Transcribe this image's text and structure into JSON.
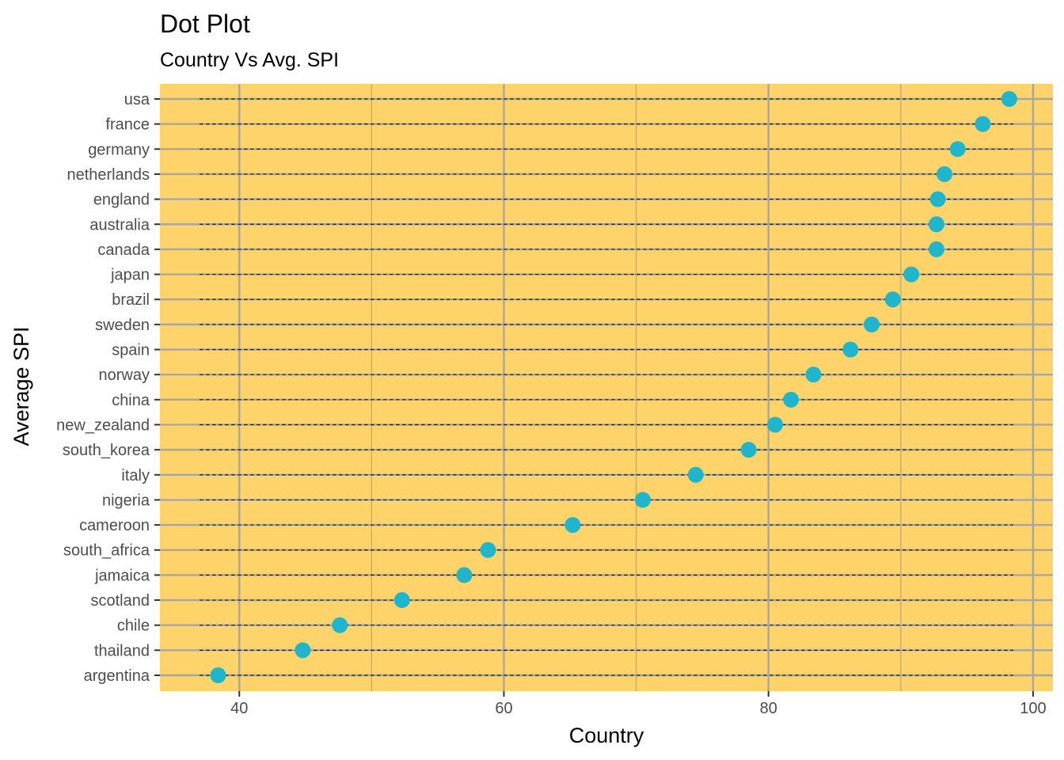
{
  "chart_data": {
    "type": "scatter",
    "title": "Dot Plot",
    "subtitle": "Country Vs Avg. SPI",
    "xlabel": "Country",
    "ylabel": "Average SPI",
    "xlim": [
      34,
      101.5
    ],
    "xticks": [
      40,
      60,
      80,
      100
    ],
    "grid": true,
    "background_color": "#FDD36A",
    "point_color": "#1FB5CC",
    "segment_range": [
      37,
      98.5
    ],
    "categories": [
      "usa",
      "france",
      "germany",
      "netherlands",
      "england",
      "australia",
      "canada",
      "japan",
      "brazil",
      "sweden",
      "spain",
      "norway",
      "china",
      "new_zealand",
      "south_korea",
      "italy",
      "nigeria",
      "cameroon",
      "south_africa",
      "jamaica",
      "scotland",
      "chile",
      "thailand",
      "argentina"
    ],
    "values": [
      98.2,
      96.2,
      94.3,
      93.3,
      92.8,
      92.7,
      92.7,
      90.8,
      89.4,
      87.8,
      86.2,
      83.4,
      81.7,
      80.5,
      78.5,
      74.5,
      70.5,
      65.2,
      58.8,
      57.0,
      52.3,
      47.6,
      44.8,
      38.4
    ]
  }
}
